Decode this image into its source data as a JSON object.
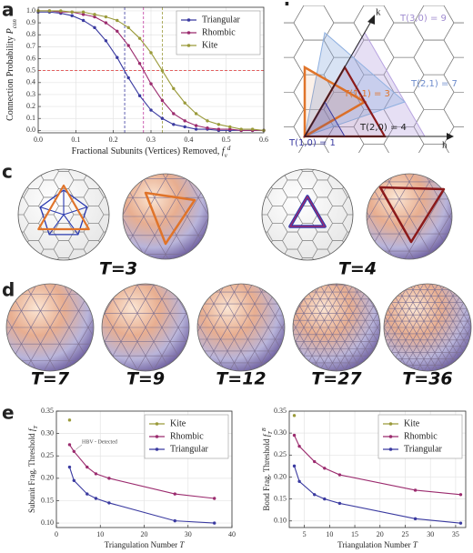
{
  "panel_labels": [
    "a",
    "b",
    "c",
    "d",
    "e"
  ],
  "lattice": {
    "axis_h": "h",
    "axis_k": "k",
    "labels": [
      "T(1,0) = 1",
      "T(2,0) = 4",
      "T(1,1) = 3",
      "T(2,1) = 7",
      "T(3,0) = 9"
    ]
  },
  "capsids_c": [
    "T=3",
    "T=4"
  ],
  "capsids_d": [
    "T=7",
    "T=9",
    "T=12",
    "T=27",
    "T=36"
  ],
  "chart_data": [
    {
      "type": "line",
      "x_label": {
        "text": "Fractional Subunits (Vertices) Removed, ",
        "symbol": "f",
        "sub": "v",
        "sup": "d"
      },
      "y_label": {
        "text": "Connection Probability ",
        "symbol": "P",
        "sub": "con"
      },
      "x": [
        0,
        0.03,
        0.06,
        0.09,
        0.12,
        0.15,
        0.18,
        0.21,
        0.24,
        0.27,
        0.3,
        0.33,
        0.36,
        0.39,
        0.42,
        0.45,
        0.48,
        0.51,
        0.54,
        0.57,
        0.6
      ],
      "series": [
        {
          "name": "Triangular",
          "color": "#3a3aa0",
          "values": [
            0.99,
            0.99,
            0.98,
            0.96,
            0.92,
            0.86,
            0.75,
            0.61,
            0.44,
            0.29,
            0.17,
            0.1,
            0.05,
            0.03,
            0.01,
            0.01,
            0,
            0,
            0,
            0,
            0
          ]
        },
        {
          "name": "Rhombic",
          "color": "#9b2b6e",
          "values": [
            1.0,
            1.0,
            0.99,
            0.99,
            0.97,
            0.95,
            0.9,
            0.83,
            0.71,
            0.56,
            0.39,
            0.25,
            0.14,
            0.08,
            0.04,
            0.02,
            0.01,
            0.01,
            0,
            0,
            0
          ]
        },
        {
          "name": "Kite",
          "color": "#9a9a3a",
          "values": [
            1.0,
            1.0,
            1.0,
            0.99,
            0.99,
            0.97,
            0.95,
            0.92,
            0.86,
            0.77,
            0.65,
            0.5,
            0.35,
            0.23,
            0.14,
            0.08,
            0.05,
            0.03,
            0.01,
            0.01,
            0
          ]
        }
      ],
      "xlim": [
        0,
        0.6
      ],
      "ylim": [
        -0.02,
        1.03
      ],
      "xticks": [
        {
          "value": 0,
          "label": "0.0"
        },
        0.1,
        0.2,
        0.3,
        0.4,
        0.5,
        0.6
      ],
      "yticks": [
        {
          "value": 0,
          "label": "0.0"
        },
        0.1,
        0.2,
        0.3,
        0.4,
        0.5,
        0.6,
        0.7,
        0.8,
        0.9,
        {
          "value": 1,
          "label": "1.0"
        }
      ],
      "x_reference_lines": [
        {
          "value": 0.23,
          "color": "#3a3aa0"
        },
        {
          "value": 0.28,
          "color": "#c03aa0"
        },
        {
          "value": 0.33,
          "color": "#9a9a3a"
        }
      ],
      "y_reference_lines": [
        {
          "value": 0.5,
          "color": "#e03030"
        }
      ],
      "grid": true,
      "legend": "upper right"
    },
    {
      "type": "line",
      "x_label": {
        "text": "Triangulation Number ",
        "symbol": "T"
      },
      "y_label": {
        "text": "Subunit Frag. Threshold ",
        "symbol": "f",
        "sub": "T"
      },
      "x": [
        3,
        4,
        7,
        9,
        12,
        27,
        36
      ],
      "series": [
        {
          "name": "Kite",
          "color": "#9a9a3a",
          "values": [
            0.33,
            null,
            null,
            null,
            null,
            null,
            null
          ]
        },
        {
          "name": "Rhombic",
          "color": "#9b2b6e",
          "values": [
            0.275,
            0.26,
            0.225,
            0.21,
            0.2,
            0.165,
            0.155
          ]
        },
        {
          "name": "Triangular",
          "color": "#3a3aa0",
          "values": [
            0.225,
            0.195,
            0.165,
            0.155,
            0.145,
            0.105,
            0.1
          ]
        }
      ],
      "xlim": [
        0,
        40
      ],
      "ylim": [
        0.09,
        0.35
      ],
      "xticks": [
        0,
        10,
        20,
        30,
        40
      ],
      "yticks": [
        {
          "value": 0.1,
          "label": "0.10"
        },
        0.15,
        {
          "value": 0.2,
          "label": "0.20"
        },
        0.25,
        {
          "value": 0.3,
          "label": "0.30"
        },
        0.35
      ],
      "annotation": "HBV - Detected",
      "grid": true,
      "legend": "upper right"
    },
    {
      "type": "line",
      "x_label": {
        "text": "Triangulation Number ",
        "symbol": "T"
      },
      "y_label": {
        "text": "Bond Frag. Threshold ",
        "symbol": "f",
        "sub": "T",
        "sup": "B"
      },
      "x": [
        3,
        4,
        7,
        9,
        12,
        27,
        36
      ],
      "series": [
        {
          "name": "Kite",
          "color": "#9a9a3a",
          "values": [
            0.34,
            null,
            null,
            null,
            null,
            null,
            null
          ]
        },
        {
          "name": "Rhombic",
          "color": "#9b2b6e",
          "values": [
            0.295,
            0.27,
            0.235,
            0.22,
            0.205,
            0.17,
            0.16
          ]
        },
        {
          "name": "Triangular",
          "color": "#3a3aa0",
          "values": [
            0.225,
            0.19,
            0.16,
            0.15,
            0.14,
            0.105,
            0.095
          ]
        }
      ],
      "xlim": [
        2,
        37
      ],
      "ylim": [
        0.085,
        0.35
      ],
      "xticks": [
        5,
        10,
        15,
        20,
        25,
        30,
        35
      ],
      "yticks": [
        {
          "value": 0.1,
          "label": "0.10"
        },
        0.15,
        {
          "value": 0.2,
          "label": "0.20"
        },
        0.25,
        {
          "value": 0.3,
          "label": "0.30"
        },
        0.35
      ],
      "grid": true,
      "legend": "upper right"
    }
  ]
}
